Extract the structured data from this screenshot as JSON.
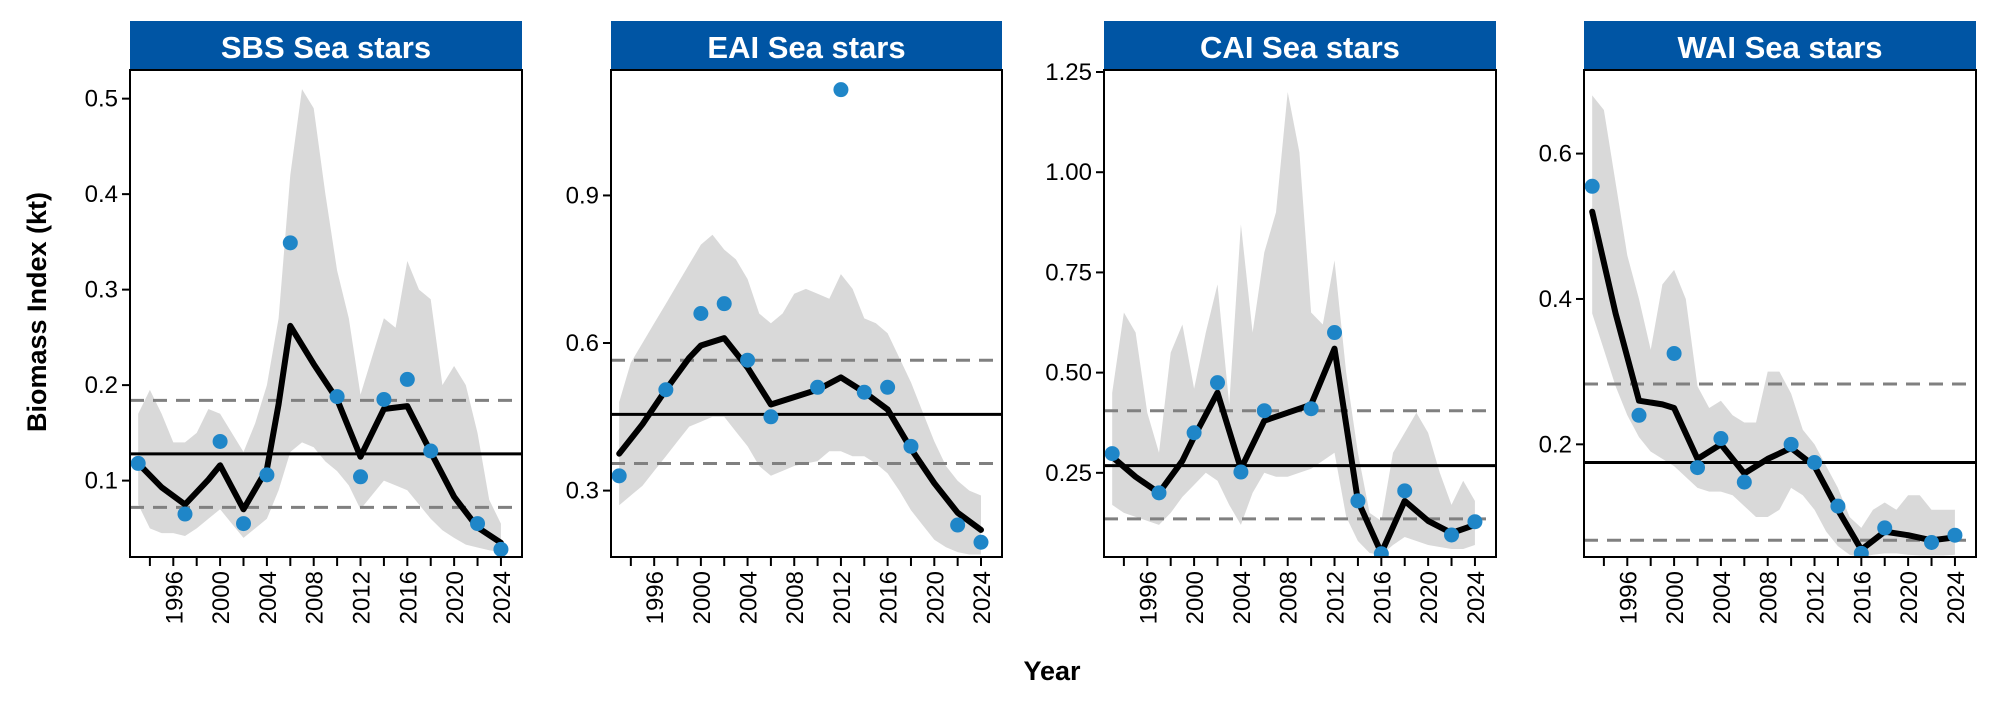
{
  "figure": {
    "ylabel": "Biomass Index (kt)",
    "xlabel": "Year"
  },
  "colors": {
    "strip": "#0055a4",
    "strip_text": "#ffffff",
    "ribbon": "#d9d9d9",
    "trend": "#000000",
    "points": "#1f86c8",
    "reference_dashed": "#808080"
  },
  "chart_data": [
    {
      "type": "line",
      "title": "SBS Sea stars",
      "xlim": [
        1992.3,
        2025.8
      ],
      "ylim": [
        0.02,
        0.53
      ],
      "xticks": [
        1996,
        2000,
        2004,
        2008,
        2012,
        2016,
        2020,
        2024
      ],
      "yticks": [
        0.1,
        0.2,
        0.3,
        0.4,
        0.5
      ],
      "ytick_labels": [
        "0.1",
        "0.2",
        "0.3",
        "0.4",
        "0.5"
      ],
      "mean": 0.128,
      "dashed_lines": [
        0.072,
        0.184
      ],
      "trend_line": {
        "x": [
          1993,
          1995,
          1997,
          1999,
          2000,
          2002,
          2004,
          2005,
          2006,
          2008,
          2010,
          2012,
          2014,
          2016,
          2018,
          2020,
          2022,
          2024
        ],
        "y": [
          0.118,
          0.093,
          0.075,
          0.101,
          0.116,
          0.07,
          0.112,
          0.18,
          0.262,
          0.222,
          0.185,
          0.125,
          0.175,
          0.178,
          0.13,
          0.083,
          0.051,
          0.035
        ]
      },
      "ribbon": {
        "x": [
          1993,
          1994,
          1995,
          1996,
          1997,
          1998,
          1999,
          2000,
          2001,
          2002,
          2003,
          2004,
          2005,
          2006,
          2007,
          2008,
          2009,
          2010,
          2011,
          2012,
          2013,
          2014,
          2015,
          2016,
          2017,
          2018,
          2019,
          2020,
          2021,
          2022,
          2023,
          2024
        ],
        "lower": [
          0.075,
          0.05,
          0.045,
          0.045,
          0.042,
          0.05,
          0.06,
          0.07,
          0.055,
          0.04,
          0.05,
          0.06,
          0.09,
          0.13,
          0.14,
          0.135,
          0.12,
          0.11,
          0.095,
          0.07,
          0.085,
          0.1,
          0.095,
          0.09,
          0.075,
          0.06,
          0.048,
          0.04,
          0.033,
          0.03,
          0.027,
          0.025
        ],
        "upper": [
          0.17,
          0.195,
          0.17,
          0.14,
          0.14,
          0.15,
          0.175,
          0.17,
          0.15,
          0.13,
          0.16,
          0.2,
          0.27,
          0.42,
          0.51,
          0.49,
          0.4,
          0.32,
          0.27,
          0.19,
          0.23,
          0.27,
          0.26,
          0.33,
          0.3,
          0.29,
          0.2,
          0.22,
          0.2,
          0.15,
          0.08,
          0.055
        ]
      },
      "points": {
        "x": [
          1993,
          1997,
          2000,
          2002,
          2004,
          2006,
          2010,
          2012,
          2014,
          2016,
          2018,
          2022,
          2024
        ],
        "y": [
          0.118,
          0.065,
          0.141,
          0.055,
          0.106,
          0.349,
          0.188,
          0.104,
          0.185,
          0.206,
          0.131,
          0.055,
          0.028
        ]
      }
    },
    {
      "type": "line",
      "title": "EAI Sea stars",
      "xlim": [
        1992.3,
        2025.8
      ],
      "ylim": [
        0.165,
        1.155
      ],
      "xticks": [
        1996,
        2000,
        2004,
        2008,
        2012,
        2016,
        2020,
        2024
      ],
      "yticks": [
        0.3,
        0.6,
        0.9
      ],
      "ytick_labels": [
        "0.3",
        "0.6",
        "0.9"
      ],
      "mean": 0.455,
      "dashed_lines": [
        0.355,
        0.565
      ],
      "trend_line": {
        "x": [
          1993,
          1995,
          1997,
          1999,
          2000,
          2002,
          2004,
          2006,
          2008,
          2010,
          2012,
          2014,
          2016,
          2018,
          2020,
          2022,
          2024
        ],
        "y": [
          0.375,
          0.435,
          0.505,
          0.57,
          0.595,
          0.61,
          0.55,
          0.475,
          0.49,
          0.505,
          0.53,
          0.5,
          0.465,
          0.385,
          0.315,
          0.255,
          0.22
        ]
      },
      "ribbon": {
        "x": [
          1993,
          1994,
          1995,
          1996,
          1997,
          1998,
          1999,
          2000,
          2001,
          2002,
          2003,
          2004,
          2005,
          2006,
          2007,
          2008,
          2009,
          2010,
          2011,
          2012,
          2013,
          2014,
          2015,
          2016,
          2017,
          2018,
          2019,
          2020,
          2021,
          2022,
          2023,
          2024
        ],
        "lower": [
          0.27,
          0.29,
          0.31,
          0.34,
          0.37,
          0.4,
          0.43,
          0.44,
          0.45,
          0.45,
          0.42,
          0.39,
          0.35,
          0.33,
          0.34,
          0.35,
          0.355,
          0.36,
          0.38,
          0.38,
          0.37,
          0.37,
          0.355,
          0.335,
          0.3,
          0.26,
          0.23,
          0.2,
          0.185,
          0.175,
          0.17,
          0.17
        ],
        "upper": [
          0.48,
          0.56,
          0.6,
          0.64,
          0.68,
          0.72,
          0.76,
          0.8,
          0.82,
          0.79,
          0.77,
          0.73,
          0.66,
          0.64,
          0.66,
          0.7,
          0.71,
          0.7,
          0.69,
          0.74,
          0.71,
          0.65,
          0.64,
          0.62,
          0.57,
          0.52,
          0.46,
          0.4,
          0.35,
          0.32,
          0.3,
          0.29
        ]
      },
      "points": {
        "x": [
          1993,
          1997,
          2000,
          2002,
          2004,
          2006,
          2010,
          2012,
          2014,
          2016,
          2018,
          2022,
          2024
        ],
        "y": [
          0.33,
          0.505,
          0.66,
          0.68,
          0.565,
          0.45,
          0.51,
          1.115,
          0.5,
          0.51,
          0.39,
          0.23,
          0.195
        ]
      }
    },
    {
      "type": "line",
      "title": "CAI Sea stars",
      "xlim": [
        1992.3,
        2025.8
      ],
      "ylim": [
        0.04,
        1.255
      ],
      "xticks": [
        1996,
        2000,
        2004,
        2008,
        2012,
        2016,
        2020,
        2024
      ],
      "yticks": [
        0.25,
        0.5,
        0.75,
        1.0,
        1.25
      ],
      "ytick_labels": [
        "0.25",
        "0.50",
        "0.75",
        "1.00",
        "1.25"
      ],
      "mean": 0.268,
      "dashed_lines": [
        0.135,
        0.405
      ],
      "trend_line": {
        "x": [
          1993,
          1995,
          1997,
          1999,
          2000,
          2002,
          2004,
          2006,
          2008,
          2010,
          2012,
          2014,
          2016,
          2018,
          2020,
          2022,
          2024
        ],
        "y": [
          0.29,
          0.24,
          0.2,
          0.28,
          0.34,
          0.45,
          0.26,
          0.38,
          0.4,
          0.42,
          0.56,
          0.18,
          0.05,
          0.18,
          0.13,
          0.1,
          0.12
        ]
      },
      "ribbon": {
        "x": [
          1993,
          1994,
          1995,
          1996,
          1997,
          1998,
          1999,
          2000,
          2001,
          2002,
          2003,
          2004,
          2005,
          2006,
          2007,
          2008,
          2009,
          2010,
          2011,
          2012,
          2013,
          2014,
          2015,
          2016,
          2017,
          2018,
          2019,
          2020,
          2021,
          2022,
          2023,
          2024
        ],
        "lower": [
          0.17,
          0.15,
          0.14,
          0.13,
          0.12,
          0.15,
          0.19,
          0.22,
          0.25,
          0.23,
          0.17,
          0.12,
          0.2,
          0.25,
          0.24,
          0.24,
          0.25,
          0.26,
          0.28,
          0.3,
          0.14,
          0.08,
          0.05,
          0.045,
          0.07,
          0.09,
          0.08,
          0.07,
          0.065,
          0.06,
          0.06,
          0.07
        ],
        "upper": [
          0.45,
          0.65,
          0.6,
          0.4,
          0.3,
          0.55,
          0.62,
          0.46,
          0.6,
          0.72,
          0.42,
          0.87,
          0.6,
          0.8,
          0.9,
          1.2,
          1.05,
          0.65,
          0.62,
          0.78,
          0.5,
          0.3,
          0.15,
          0.13,
          0.3,
          0.35,
          0.4,
          0.35,
          0.25,
          0.17,
          0.23,
          0.18
        ]
      },
      "points": {
        "x": [
          1993,
          1997,
          2000,
          2002,
          2004,
          2006,
          2010,
          2012,
          2014,
          2016,
          2018,
          2022,
          2024
        ],
        "y": [
          0.298,
          0.2,
          0.35,
          0.475,
          0.252,
          0.405,
          0.41,
          0.6,
          0.18,
          0.048,
          0.205,
          0.095,
          0.128
        ]
      }
    },
    {
      "type": "line",
      "title": "WAI Sea stars",
      "xlim": [
        1992.3,
        2025.8
      ],
      "ylim": [
        0.045,
        0.715
      ],
      "xticks": [
        1996,
        2000,
        2004,
        2008,
        2012,
        2016,
        2020,
        2024
      ],
      "yticks": [
        0.2,
        0.4,
        0.6
      ],
      "ytick_labels": [
        "0.2",
        "0.4",
        "0.6"
      ],
      "mean": 0.175,
      "dashed_lines": [
        0.068,
        0.283
      ],
      "trend_line": {
        "x": [
          1993,
          1995,
          1997,
          1999,
          2000,
          2002,
          2004,
          2006,
          2008,
          2010,
          2012,
          2014,
          2016,
          2018,
          2020,
          2022,
          2024
        ],
        "y": [
          0.52,
          0.38,
          0.26,
          0.255,
          0.25,
          0.18,
          0.2,
          0.16,
          0.18,
          0.195,
          0.17,
          0.11,
          0.055,
          0.08,
          0.075,
          0.068,
          0.072
        ]
      },
      "ribbon": {
        "x": [
          1993,
          1994,
          1995,
          1996,
          1997,
          1998,
          1999,
          2000,
          2001,
          2002,
          2003,
          2004,
          2005,
          2006,
          2007,
          2008,
          2009,
          2010,
          2011,
          2012,
          2013,
          2014,
          2015,
          2016,
          2017,
          2018,
          2019,
          2020,
          2021,
          2022,
          2023,
          2024
        ],
        "lower": [
          0.38,
          0.33,
          0.28,
          0.24,
          0.21,
          0.19,
          0.18,
          0.17,
          0.155,
          0.14,
          0.135,
          0.135,
          0.13,
          0.115,
          0.1,
          0.1,
          0.11,
          0.14,
          0.13,
          0.11,
          0.08,
          0.06,
          0.048,
          0.045,
          0.048,
          0.05,
          0.05,
          0.048,
          0.047,
          0.047,
          0.047,
          0.048
        ],
        "upper": [
          0.68,
          0.66,
          0.56,
          0.46,
          0.4,
          0.33,
          0.42,
          0.44,
          0.4,
          0.28,
          0.25,
          0.26,
          0.24,
          0.23,
          0.23,
          0.3,
          0.3,
          0.27,
          0.22,
          0.2,
          0.17,
          0.14,
          0.1,
          0.085,
          0.11,
          0.12,
          0.11,
          0.13,
          0.13,
          0.11,
          0.11,
          0.11
        ]
      },
      "points": {
        "x": [
          1993,
          1997,
          2000,
          2002,
          2004,
          2006,
          2010,
          2012,
          2014,
          2016,
          2018,
          2022,
          2024
        ],
        "y": [
          0.555,
          0.24,
          0.325,
          0.168,
          0.208,
          0.148,
          0.2,
          0.175,
          0.115,
          0.05,
          0.085,
          0.065,
          0.075
        ]
      }
    }
  ]
}
